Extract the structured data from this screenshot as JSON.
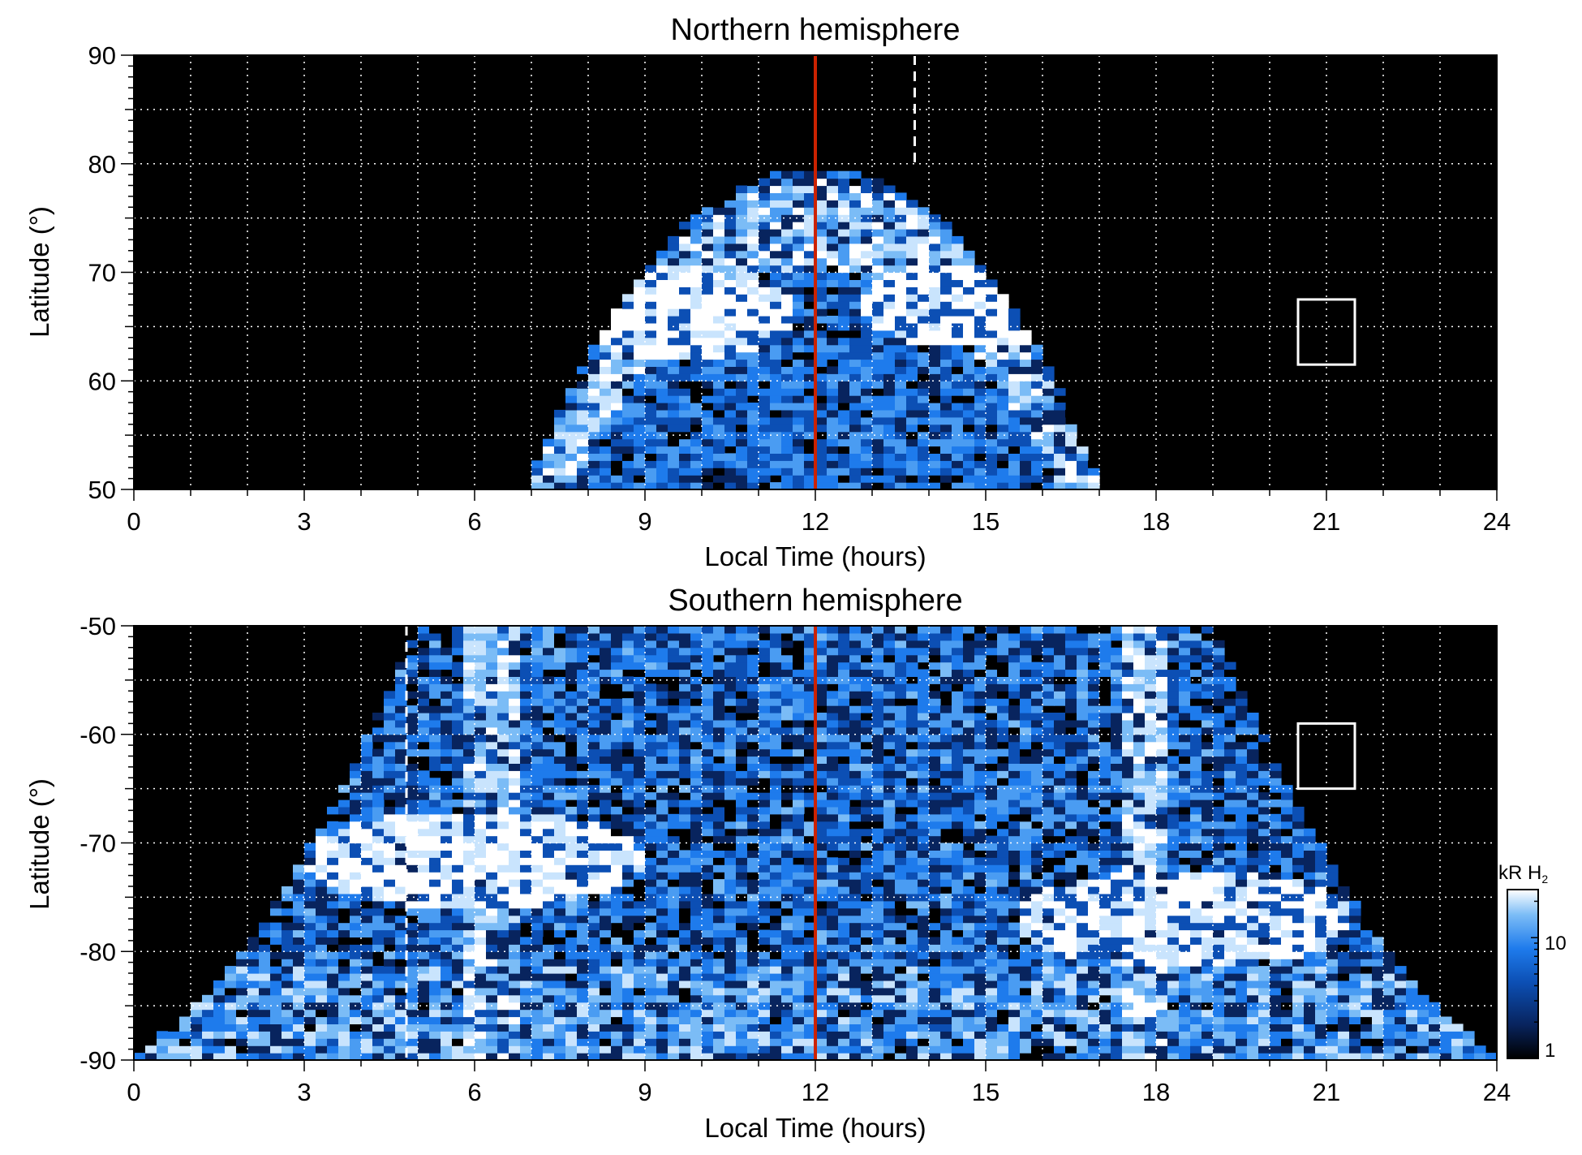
{
  "figure": {
    "colorbar": {
      "label_main": "kR H",
      "label_sub": "2",
      "tick_labels": [
        "1",
        "10"
      ],
      "scale": "log",
      "range": [
        1,
        25
      ],
      "colormap": [
        "#000000",
        "#08245e",
        "#0c4fb4",
        "#1e7bec",
        "#7bbcf6",
        "#ffffff"
      ]
    }
  },
  "chart_data": [
    {
      "type": "heatmap",
      "title": "Northern hemisphere",
      "xlabel": "Local Time (hours)",
      "ylabel": "Latitude (°)",
      "xlim": [
        0,
        24
      ],
      "ylim": [
        50,
        90
      ],
      "x_ticks": [
        0,
        3,
        6,
        9,
        12,
        15,
        18,
        21,
        24
      ],
      "x_tick_labels": [
        "0",
        "3",
        "6",
        "9",
        "12",
        "15",
        "18",
        "21",
        "24"
      ],
      "y_ticks": [
        50,
        60,
        70,
        80,
        90
      ],
      "y_tick_labels": [
        "50",
        "60",
        "70",
        "80",
        "90"
      ],
      "grid": true,
      "value_units": "kR H2",
      "background_value": 0,
      "auroral_oval": {
        "description": "bright auroral emission arc peaking near 9.5 and 14.5 LT",
        "arc_center_lt": 12,
        "arc_top_latitude": 79.5,
        "arc_half_width_hours_at_50deg": 5,
        "bright_spots": [
          {
            "lt": 9.7,
            "lat": 66,
            "value": 25
          },
          {
            "lt": 14.8,
            "lat": 67,
            "value": 22
          }
        ]
      },
      "reference_lines": [
        {
          "lt": 12,
          "style": "solid",
          "color": "#cc2200"
        },
        {
          "lt": 13.75,
          "style": "dashed",
          "color": "#ffffff",
          "lat_range": [
            80,
            90
          ]
        }
      ],
      "box": {
        "lt_range": [
          20.5,
          21.5
        ],
        "lat_range": [
          61.5,
          67.5
        ]
      }
    },
    {
      "type": "heatmap",
      "title": "Southern hemisphere",
      "xlabel": "Local Time (hours)",
      "ylabel": "Latitude (°)",
      "xlim": [
        0,
        24
      ],
      "ylim": [
        -90,
        -50
      ],
      "x_ticks": [
        0,
        3,
        6,
        9,
        12,
        15,
        18,
        21,
        24
      ],
      "x_tick_labels": [
        "0",
        "3",
        "6",
        "9",
        "12",
        "15",
        "18",
        "21",
        "24"
      ],
      "y_ticks": [
        -90,
        -80,
        -70,
        -60,
        -50
      ],
      "y_tick_labels": [
        "-90",
        "-80",
        "-70",
        "-60",
        "-50"
      ],
      "grid": true,
      "value_units": "kR H2",
      "background_value": 0,
      "auroral_oval": {
        "description": "bright auroral emission curving down toward the pole, peaks near 6 and 18 LT",
        "arc_center_lt": 12,
        "bright_bands_lt": [
          6.3,
          17.8
        ],
        "bright_spots": [
          {
            "lt": 6.0,
            "lat": -71.5,
            "value": 25
          },
          {
            "lt": 18.5,
            "lat": -77,
            "value": 22
          }
        ],
        "polar_band_latitude": [
          -90,
          -81
        ]
      },
      "reference_lines": [
        {
          "lt": 12,
          "style": "solid",
          "color": "#cc2200"
        },
        {
          "lt": 4.8,
          "style": "dashed",
          "color": "#ffffff",
          "lat_range": [
            -90,
            -50
          ]
        }
      ],
      "box": {
        "lt_range": [
          20.5,
          21.5
        ],
        "lat_range": [
          -65,
          -59
        ]
      }
    }
  ]
}
